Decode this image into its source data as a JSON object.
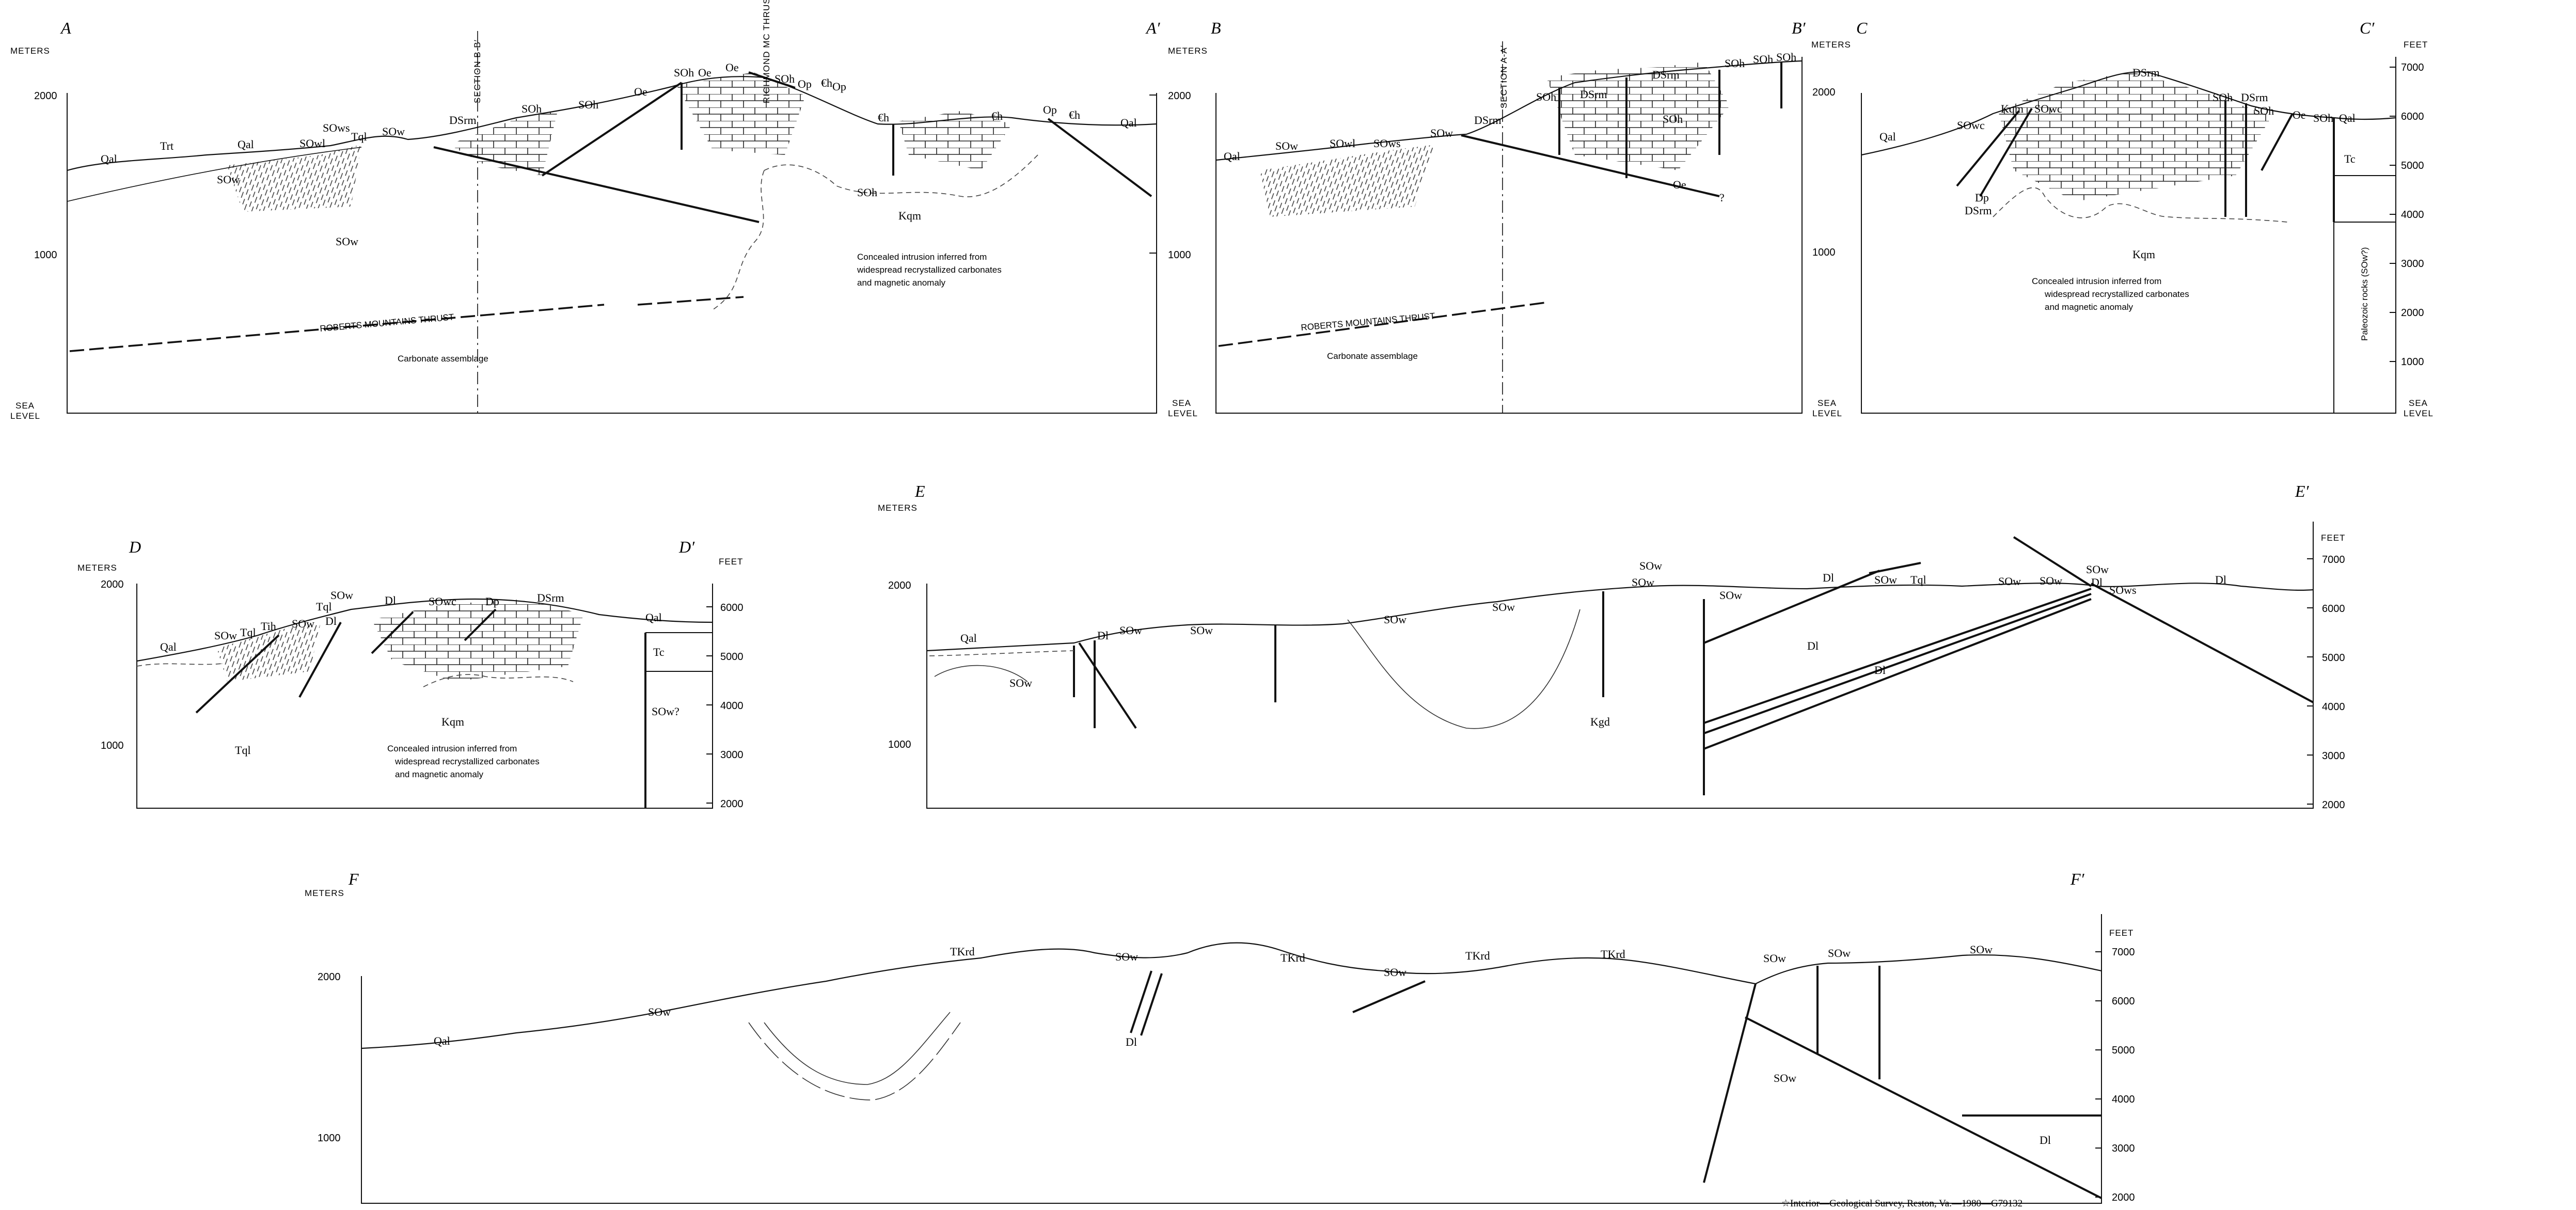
{
  "axis": {
    "meters": "METERS",
    "feet": "FEET",
    "sea": "SEA",
    "level": "LEVEL",
    "m2000": "2000",
    "m1000": "1000",
    "f7000": "7000",
    "f6000": "6000",
    "f5000": "5000",
    "f4000": "4000",
    "f3000": "3000",
    "f2000": "2000",
    "f1000": "1000"
  },
  "sections": {
    "A": {
      "start": "A",
      "end": "A′",
      "labels": [
        "Trt",
        "Qal",
        "SOw",
        "SOwl",
        "SOws",
        "Tql",
        "SOw",
        "DSrm",
        "SOh",
        "SOh",
        "Oe",
        "SOh",
        "Oe",
        "Oe",
        "SOh",
        "Op",
        "€h",
        "Op",
        "€h",
        "€h",
        "Op",
        "€h",
        "Qal",
        "SOh",
        "SOw",
        "Kqm"
      ],
      "section_line": "SECTION B-B′",
      "richmond": "RICHMOND MC THRUST",
      "rmt": "ROBERTS MOUNTAINS THRUST",
      "carb": "Carbonate assemblage",
      "note": [
        "Concealed intrusion inferred from",
        "widespread recrystallized carbonates",
        "and magnetic anomaly"
      ]
    },
    "B": {
      "start": "B",
      "end": "B′",
      "labels": [
        "Qal",
        "SOw",
        "SOwl",
        "SOws",
        "SOw",
        "DSrm",
        "SOh",
        "DSrm",
        "DSrm",
        "SOh",
        "SOh",
        "SOh",
        "SOh",
        "Oe",
        "?"
      ],
      "section_line": "SECTION A-A′",
      "rmt": "ROBERTS MOUNTAINS THRUST",
      "carb": "Carbonate assemblage"
    },
    "C": {
      "start": "C",
      "end": "C′",
      "labels": [
        "Qal",
        "SOwc",
        "Kqm",
        "SOwc",
        "DSrm",
        "SOh",
        "DSrm",
        "SOh",
        "Oe",
        "SOh",
        "Qal",
        "Dp",
        "DSrm",
        "Tc",
        "Kqm"
      ],
      "paleozoic": "Paleozoic rocks (SOw?)",
      "note": [
        "Concealed intrusion inferred from",
        "widespread recrystallized carbonates",
        "and magnetic anomaly"
      ]
    },
    "D": {
      "start": "D",
      "end": "D′",
      "labels": [
        "Qal",
        "SOw",
        "Tql",
        "Tih",
        "SOw",
        "Tql",
        "SOw",
        "Dl",
        "Dl",
        "SOwc",
        "Dp",
        "DSrm",
        "Qal",
        "Tc",
        "SOw?",
        "Tql",
        "Kqm"
      ],
      "note": [
        "Concealed intrusion inferred from",
        "widespread recrystallized carbonates",
        "and magnetic anomaly"
      ]
    },
    "E": {
      "start": "E",
      "end": "E′",
      "labels": [
        "Qal",
        "SOw",
        "Dl",
        "SOw",
        "SOw",
        "SOw",
        "SOw",
        "SOw",
        "SOw",
        "Dl",
        "SOw",
        "Tql",
        "SOw",
        "SOw",
        "SOw",
        "Dl",
        "SOws",
        "Dl",
        "Dl",
        "Dl",
        "SOw",
        "Kgd"
      ]
    },
    "F": {
      "start": "F",
      "end": "F′",
      "labels": [
        "Qal",
        "SOw",
        "TKrd",
        "SOw",
        "TKrd",
        "SOw",
        "TKrd",
        "TKrd",
        "SOw",
        "SOw",
        "SOw",
        "Dl",
        "SOw",
        "Dl"
      ]
    }
  },
  "footer": "☆Interior—Geological Survey, Reston, Va.—1980—G79132"
}
